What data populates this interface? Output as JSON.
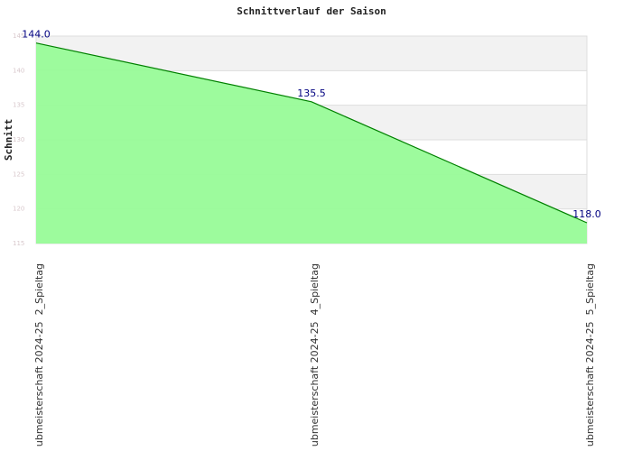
{
  "chart_data": {
    "type": "area",
    "title": "Schnittverlauf der Saison",
    "y_label": "Schnitt",
    "categories": [
      "ubmeisterschaft 2024-25  2_Spieltag",
      "ubmeisterschaft 2024-25  4_Spieltag",
      "ubmeisterschaft 2024-25  5_Spieltag"
    ],
    "values": [
      144.0,
      135.5,
      118.0
    ],
    "value_labels": [
      "144.0",
      "135.5",
      "118.0"
    ],
    "color": "#008000",
    "fill": "#98fb98",
    "ylim": [
      115,
      145
    ],
    "yticks": [
      115,
      120,
      125,
      130,
      135,
      140,
      145
    ],
    "grid": true
  }
}
